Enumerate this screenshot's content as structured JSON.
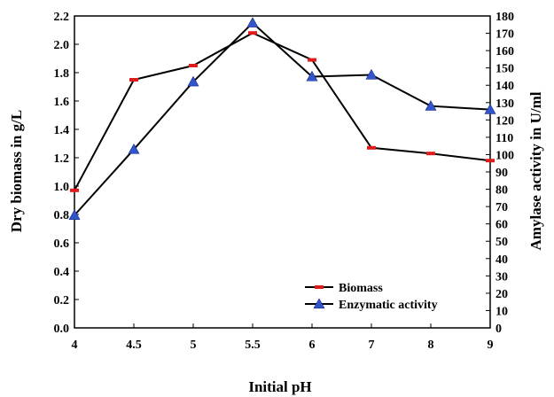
{
  "chart_data": {
    "type": "line",
    "x": [
      "4",
      "4.5",
      "5",
      "5.5",
      "6",
      "7",
      "8",
      "9"
    ],
    "xlabel": "Initial pH",
    "ylabel_left": "Dry biomass in g/L",
    "ylabel_right": "Amylase activity in U/ml",
    "ylim_left": [
      0,
      2.2
    ],
    "ylim_right": [
      0,
      180
    ],
    "yticks_left": [
      "0.0",
      "0.2",
      "0.4",
      "0.6",
      "0.8",
      "1.0",
      "1.2",
      "1.4",
      "1.6",
      "1.8",
      "2.0",
      "2.2"
    ],
    "yticks_right": [
      "0",
      "10",
      "20",
      "30",
      "40",
      "50",
      "60",
      "70",
      "80",
      "90",
      "100",
      "110",
      "120",
      "130",
      "140",
      "150",
      "160",
      "170",
      "180"
    ],
    "grid": false,
    "legend_position": "bottom-right",
    "series": [
      {
        "name": "Biomass",
        "axis": "left",
        "marker": "dash",
        "color": "#e01b1b",
        "values": [
          0.97,
          1.75,
          1.85,
          2.08,
          1.89,
          1.27,
          1.23,
          1.18
        ]
      },
      {
        "name": "Enzymatic activity",
        "axis": "right",
        "marker": "triangle",
        "color": "#3355cc",
        "values": [
          65,
          103,
          142,
          176,
          145,
          146,
          128,
          126
        ]
      }
    ]
  }
}
